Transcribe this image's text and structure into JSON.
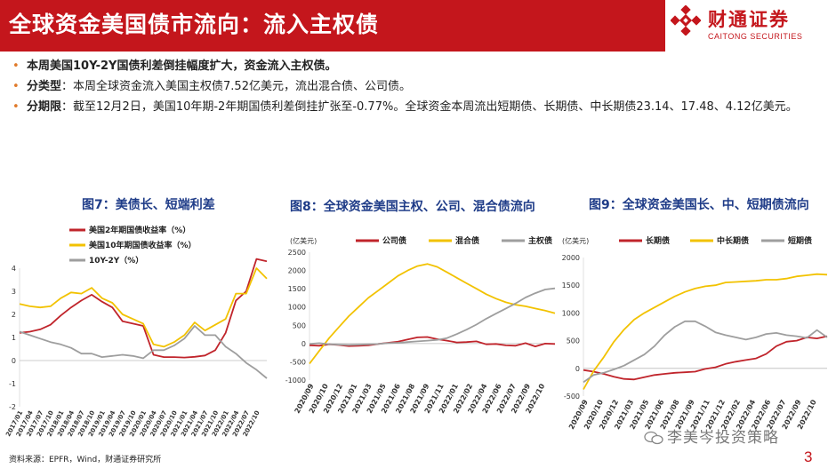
{
  "header": {
    "title": "全球资金美国债市流向：流入主权债"
  },
  "logo": {
    "cn": "财通证券",
    "en": "CAITONG SECURITIES",
    "icon": "caitong-logo-mark",
    "color": "#c4161c"
  },
  "bullets": [
    {
      "strong": "本周美国10Y-2Y国债利差倒挂幅度扩大，资金流入主权债。",
      "text": ""
    },
    {
      "strong": "分类型",
      "text": "：本周全球资金流入美国主权债7.52亿美元，流出混合债、公司债。"
    },
    {
      "strong": "分期限",
      "text": "：截至12月2日，美国10年期-2年期国债利差倒挂扩张至-0.77%。全球资金本周流出短期债、长期债、中长期债23.14、17.48、4.12亿美元。"
    }
  ],
  "chart_titles": [
    "图7：美债长、短端利差",
    "图8：全球资金美国主权、公司、混合债流向",
    "图9：全球资金美国长、中、短期债流向"
  ],
  "chart_data": [
    {
      "type": "line",
      "title": "图7：美债长、短端利差",
      "ylim": [
        -2,
        4
      ],
      "yticks": [
        "4",
        "3",
        "2",
        "1",
        "0",
        "-1",
        "-2"
      ],
      "xticks": [
        "2017/01",
        "2017/04",
        "2017/07",
        "2017/10",
        "2018/01",
        "2018/04",
        "2018/07",
        "2018/10",
        "2019/01",
        "2019/04",
        "2019/07",
        "2019/10",
        "2020/01",
        "2020/04",
        "2020/07",
        "2020/10",
        "2021/01",
        "2021/04",
        "2021/07",
        "2021/10",
        "2022/01",
        "2022/04",
        "2022/07",
        "2022/10"
      ],
      "legend": [
        "美国2年期国债收益率（%）",
        "美国10年期国债收益率（%）",
        "10Y-2Y（%）"
      ],
      "series": [
        {
          "name": "美国2年期国债收益率（%）",
          "color": "#c0242b",
          "values": [
            1.2,
            1.25,
            1.35,
            1.55,
            1.95,
            2.3,
            2.6,
            2.85,
            2.55,
            2.3,
            1.7,
            1.6,
            1.5,
            0.25,
            0.15,
            0.15,
            0.13,
            0.16,
            0.22,
            0.45,
            1.2,
            2.6,
            3.0,
            4.4,
            4.3
          ]
        },
        {
          "name": "美国10年期国债收益率（%）",
          "color": "#f2c200",
          "values": [
            2.45,
            2.35,
            2.3,
            2.35,
            2.7,
            2.95,
            2.9,
            3.15,
            2.7,
            2.5,
            2.0,
            1.8,
            1.6,
            0.7,
            0.6,
            0.8,
            1.1,
            1.65,
            1.3,
            1.55,
            1.8,
            2.9,
            2.9,
            4.0,
            3.55
          ]
        },
        {
          "name": "10Y-2Y（%）",
          "color": "#9e9e9e",
          "values": [
            1.25,
            1.1,
            0.95,
            0.8,
            0.7,
            0.55,
            0.3,
            0.3,
            0.15,
            0.2,
            0.25,
            0.2,
            0.1,
            0.45,
            0.45,
            0.65,
            0.95,
            1.5,
            1.1,
            1.1,
            0.6,
            0.3,
            -0.1,
            -0.4,
            -0.77
          ]
        }
      ]
    },
    {
      "type": "line",
      "title": "图8：全球资金美国主权、公司、混合债流向",
      "ylabel": "(亿美元)",
      "ylim": [
        -1000,
        2500
      ],
      "yticks": [
        "2500",
        "2000",
        "1500",
        "1000",
        "500",
        "0",
        "-500",
        "-1000"
      ],
      "xticks": [
        "2020/09",
        "2020/10",
        "2020/12",
        "2021/01",
        "2021/03",
        "2021/05",
        "2021/06",
        "2021/08",
        "2021/09",
        "2021/11",
        "2022/01",
        "2022/02",
        "2022/04",
        "2022/06",
        "2022/07",
        "2022/09",
        "2022/10"
      ],
      "legend": [
        "公司债",
        "混合债",
        "主权债"
      ],
      "series": [
        {
          "name": "公司债",
          "color": "#c0242b",
          "values": [
            -50,
            -60,
            -20,
            -40,
            -70,
            -60,
            -50,
            -10,
            20,
            50,
            110,
            170,
            180,
            120,
            80,
            30,
            40,
            60,
            -20,
            -10,
            -50,
            -60,
            10,
            -80,
            0,
            -10
          ]
        },
        {
          "name": "混合债",
          "color": "#f2c200",
          "values": [
            -550,
            -200,
            150,
            450,
            750,
            1000,
            1250,
            1450,
            1650,
            1850,
            2000,
            2120,
            2180,
            2100,
            1950,
            1800,
            1650,
            1500,
            1350,
            1230,
            1130,
            1060,
            1020,
            960,
            900,
            830
          ]
        },
        {
          "name": "主权债",
          "color": "#9e9e9e",
          "values": [
            -10,
            10,
            -20,
            -30,
            -40,
            -30,
            -20,
            -10,
            10,
            20,
            40,
            60,
            80,
            100,
            150,
            260,
            380,
            520,
            680,
            820,
            960,
            1100,
            1260,
            1380,
            1480,
            1510
          ]
        }
      ]
    },
    {
      "type": "line",
      "title": "图9：全球资金美国长、中、短期债流向",
      "ylabel": "(亿美元)",
      "ylim": [
        -500,
        2000
      ],
      "yticks": [
        "2000",
        "1500",
        "1000",
        "500",
        "0",
        "-500"
      ],
      "xticks": [
        "2020/09",
        "2020/10",
        "2020/12",
        "2021/03",
        "2021/05",
        "2021/06",
        "2021/08",
        "2021/09",
        "2021/11",
        "2021/12",
        "2022/02",
        "2022/04",
        "2022/06",
        "2022/07",
        "2022/09",
        "2022/10"
      ],
      "legend": [
        "长期债",
        "中长期债",
        "短期债"
      ],
      "series": [
        {
          "name": "长期债",
          "color": "#c0242b",
          "values": [
            -30,
            -60,
            -100,
            -150,
            -190,
            -200,
            -160,
            -120,
            -100,
            -80,
            -70,
            -60,
            -10,
            20,
            80,
            120,
            150,
            180,
            260,
            400,
            480,
            500,
            560,
            540,
            580
          ]
        },
        {
          "name": "中长期债",
          "color": "#f2c200",
          "values": [
            -380,
            -50,
            200,
            480,
            700,
            880,
            1000,
            1100,
            1200,
            1300,
            1380,
            1440,
            1480,
            1500,
            1550,
            1560,
            1570,
            1580,
            1600,
            1600,
            1620,
            1660,
            1680,
            1700,
            1690
          ]
        },
        {
          "name": "短期债",
          "color": "#9e9e9e",
          "values": [
            -250,
            -120,
            -80,
            -20,
            50,
            150,
            250,
            400,
            600,
            750,
            850,
            850,
            760,
            650,
            600,
            560,
            520,
            560,
            620,
            640,
            600,
            580,
            550,
            690,
            560
          ]
        }
      ]
    }
  ],
  "source": "资料来源：EPFR，Wind，财通证券研究所",
  "watermark": {
    "text": "李美岑投资策略",
    "icon": "wechat-icon"
  },
  "page_number": "3"
}
